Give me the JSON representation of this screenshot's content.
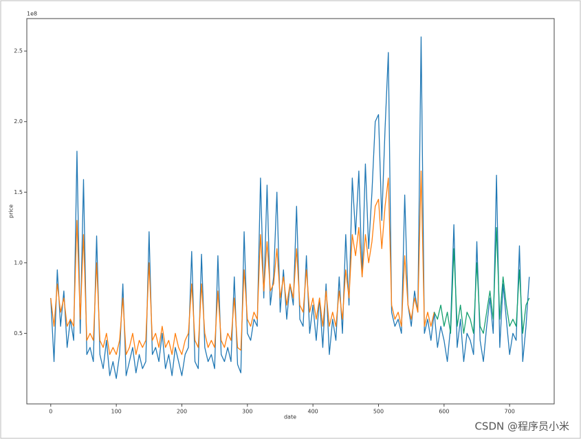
{
  "chart_data": {
    "type": "line",
    "xlabel": "date",
    "ylabel": "price",
    "offset_text": "1e8",
    "watermark": "CSDN @程序员小米",
    "x": [
      0,
      5,
      10,
      15,
      20,
      25,
      30,
      35,
      40,
      45,
      50,
      55,
      60,
      65,
      70,
      75,
      80,
      85,
      90,
      95,
      100,
      105,
      110,
      115,
      120,
      125,
      130,
      135,
      140,
      145,
      150,
      155,
      160,
      165,
      170,
      175,
      180,
      185,
      190,
      195,
      200,
      205,
      210,
      215,
      220,
      225,
      230,
      235,
      240,
      245,
      250,
      255,
      260,
      265,
      270,
      275,
      280,
      285,
      290,
      295,
      300,
      305,
      310,
      315,
      320,
      325,
      330,
      335,
      340,
      345,
      350,
      355,
      360,
      365,
      370,
      375,
      380,
      385,
      390,
      395,
      400,
      405,
      410,
      415,
      420,
      425,
      430,
      435,
      440,
      445,
      450,
      455,
      460,
      465,
      470,
      475,
      480,
      485,
      490,
      495,
      500,
      505,
      510,
      515,
      520,
      525,
      530,
      535,
      540,
      545,
      550,
      555,
      560,
      565,
      570,
      575,
      580,
      585,
      590,
      595,
      600,
      605,
      610,
      615,
      620,
      625,
      630,
      635,
      640,
      645,
      650,
      655,
      660,
      665,
      670,
      675,
      680,
      685,
      690,
      695,
      700,
      705,
      710,
      715,
      720,
      725,
      730
    ],
    "series": [
      {
        "color": "#1f77b4",
        "values": [
          0.75,
          0.3,
          0.95,
          0.55,
          0.8,
          0.4,
          0.6,
          0.45,
          1.79,
          0.5,
          1.59,
          0.35,
          0.4,
          0.3,
          1.19,
          0.35,
          0.25,
          0.45,
          0.2,
          0.3,
          0.18,
          0.35,
          0.85,
          0.2,
          0.3,
          0.4,
          0.22,
          0.35,
          0.25,
          0.3,
          1.22,
          0.35,
          0.4,
          0.3,
          0.5,
          0.25,
          0.35,
          0.2,
          0.4,
          0.3,
          0.2,
          0.35,
          0.4,
          1.08,
          0.3,
          0.25,
          1.06,
          0.4,
          0.3,
          0.35,
          0.25,
          1.05,
          0.35,
          0.3,
          0.4,
          0.3,
          0.9,
          0.28,
          0.22,
          1.22,
          0.5,
          0.45,
          0.6,
          0.55,
          1.6,
          0.75,
          1.55,
          0.7,
          0.9,
          1.5,
          0.65,
          0.95,
          0.6,
          0.85,
          0.7,
          1.4,
          0.6,
          0.55,
          1.05,
          0.5,
          0.7,
          0.45,
          0.75,
          0.4,
          0.85,
          0.35,
          0.6,
          0.45,
          0.9,
          0.5,
          1.2,
          0.7,
          1.6,
          1.2,
          1.65,
          0.9,
          1.7,
          1.1,
          1.5,
          2.0,
          2.05,
          1.3,
          1.95,
          2.49,
          0.65,
          0.55,
          0.6,
          0.5,
          1.48,
          0.7,
          0.55,
          0.8,
          0.65,
          2.6,
          0.5,
          0.6,
          0.45,
          0.65,
          0.4,
          0.55,
          0.45,
          0.3,
          0.55,
          1.27,
          0.4,
          0.6,
          0.3,
          0.5,
          0.45,
          0.35,
          1.15,
          0.45,
          0.3,
          0.55,
          0.75,
          0.5,
          1.62,
          0.4,
          0.85,
          0.6,
          0.35,
          0.5,
          0.45,
          1.12,
          0.3,
          0.55,
          0.9
        ]
      },
      {
        "color": "#ff7f0e",
        "values": [
          0.75,
          0.55,
          0.85,
          0.65,
          0.75,
          0.55,
          0.6,
          0.55,
          1.3,
          0.6,
          1.2,
          0.45,
          0.5,
          0.45,
          1.0,
          0.45,
          0.4,
          0.5,
          0.35,
          0.4,
          0.35,
          0.45,
          0.75,
          0.35,
          0.4,
          0.5,
          0.35,
          0.45,
          0.4,
          0.45,
          1.0,
          0.45,
          0.5,
          0.4,
          0.55,
          0.4,
          0.45,
          0.35,
          0.5,
          0.4,
          0.35,
          0.45,
          0.5,
          0.85,
          0.45,
          0.4,
          0.85,
          0.5,
          0.4,
          0.45,
          0.4,
          0.8,
          0.45,
          0.4,
          0.5,
          0.45,
          0.75,
          0.4,
          0.38,
          0.95,
          0.6,
          0.55,
          0.65,
          0.6,
          1.2,
          0.8,
          1.15,
          0.8,
          0.85,
          1.1,
          0.75,
          0.9,
          0.7,
          0.85,
          0.75,
          1.1,
          0.7,
          0.65,
          0.95,
          0.65,
          0.75,
          0.6,
          0.75,
          0.55,
          0.8,
          0.55,
          0.65,
          0.55,
          0.8,
          0.6,
          0.95,
          0.75,
          1.2,
          1.05,
          1.25,
          0.9,
          1.2,
          1.0,
          1.15,
          1.4,
          1.45,
          1.1,
          1.4,
          1.6,
          0.7,
          0.6,
          0.65,
          0.55,
          1.05,
          0.7,
          0.6,
          0.75,
          0.65,
          1.65,
          0.55,
          0.65,
          0.55,
          0.65,
          null,
          null,
          null,
          null,
          null,
          null,
          null,
          null,
          null,
          null,
          null,
          null,
          null,
          null,
          null,
          null,
          null,
          null,
          null,
          null,
          null,
          null,
          null,
          null,
          null,
          null,
          null,
          null,
          null
        ]
      },
      {
        "color": "#139f6e",
        "values": [
          null,
          null,
          null,
          null,
          null,
          null,
          null,
          null,
          null,
          null,
          null,
          null,
          null,
          null,
          null,
          null,
          null,
          null,
          null,
          null,
          null,
          null,
          null,
          null,
          null,
          null,
          null,
          null,
          null,
          null,
          null,
          null,
          null,
          null,
          null,
          null,
          null,
          null,
          null,
          null,
          null,
          null,
          null,
          null,
          null,
          null,
          null,
          null,
          null,
          null,
          null,
          null,
          null,
          null,
          null,
          null,
          null,
          null,
          null,
          null,
          null,
          null,
          null,
          null,
          null,
          null,
          null,
          null,
          null,
          null,
          null,
          null,
          null,
          null,
          null,
          null,
          null,
          null,
          null,
          null,
          null,
          null,
          null,
          null,
          null,
          null,
          null,
          null,
          null,
          null,
          null,
          null,
          null,
          null,
          null,
          null,
          null,
          null,
          null,
          null,
          null,
          null,
          null,
          null,
          null,
          null,
          null,
          null,
          null,
          null,
          null,
          null,
          null,
          null,
          null,
          null,
          null,
          0.65,
          0.6,
          0.7,
          0.55,
          0.65,
          0.5,
          1.1,
          0.55,
          0.7,
          0.5,
          0.65,
          0.6,
          0.5,
          1.0,
          0.55,
          0.5,
          0.65,
          0.8,
          0.6,
          1.25,
          0.6,
          0.9,
          0.7,
          0.55,
          0.6,
          0.55,
          0.95,
          0.5,
          0.7,
          0.75
        ]
      }
    ],
    "xlim": [
      -36.5,
      768
    ],
    "xticks": [
      0,
      100,
      200,
      300,
      400,
      500,
      600,
      700
    ],
    "ylim": [
      0.0,
      2.73
    ],
    "yticks": [
      0.5,
      {
        "value": 1,
        "label": "1.0"
      },
      1.5,
      {
        "value": 2,
        "label": "2.0"
      },
      2.5
    ]
  }
}
